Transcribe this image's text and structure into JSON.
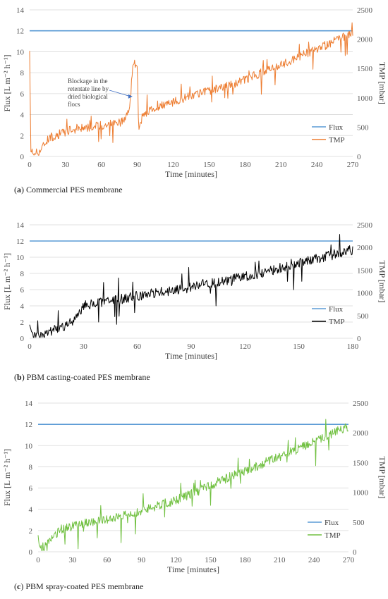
{
  "chart_data": [
    {
      "type": "line",
      "caption_letter": "a",
      "caption_text": "Commercial PES membrane",
      "xlabel": "Time [minutes]",
      "ylabel": "Flux [L m⁻² h⁻¹]",
      "y2label": "TMP [mbar]",
      "xlim": [
        0,
        270
      ],
      "ylim": [
        0,
        14
      ],
      "y2lim": [
        0,
        2500
      ],
      "xticks": [
        "0",
        "30",
        "60",
        "90",
        "120",
        "150",
        "180",
        "210",
        "240",
        "270"
      ],
      "yticks": [
        "0",
        "2",
        "4",
        "6",
        "8",
        "10",
        "12",
        "14"
      ],
      "y2ticks": [
        "0",
        "500",
        "1000",
        "1500",
        "2000",
        "2500"
      ],
      "grid": true,
      "legend_position": "bottom-right",
      "series": [
        {
          "name": "Flux",
          "axis": "left",
          "color": "#5b9bd5",
          "x": [
            0,
            270
          ],
          "y": [
            12,
            12
          ]
        },
        {
          "name": "TMP",
          "axis": "right",
          "color": "#ed7d31",
          "x": [
            0,
            1,
            3,
            5,
            8,
            12,
            15,
            20,
            30,
            40,
            50,
            60,
            70,
            80,
            84,
            86,
            88,
            90,
            91,
            95,
            100,
            110,
            120,
            130,
            140,
            150,
            160,
            170,
            180,
            190,
            200,
            210,
            220,
            230,
            240,
            250,
            260,
            270
          ],
          "y": [
            1800,
            80,
            60,
            70,
            80,
            200,
            300,
            350,
            420,
            480,
            500,
            530,
            560,
            600,
            900,
            1500,
            1580,
            1600,
            500,
            700,
            800,
            870,
            920,
            1000,
            1050,
            1120,
            1180,
            1230,
            1300,
            1400,
            1470,
            1560,
            1650,
            1750,
            1830,
            1920,
            2020,
            2100
          ],
          "noise": 75
        }
      ],
      "annotation": {
        "lines": [
          "Blockage in the",
          "retentate line by",
          "dried biological",
          "flocs"
        ],
        "target_x": 86,
        "target_y2": 1120
      }
    },
    {
      "type": "line",
      "caption_letter": "b",
      "caption_text": "PBM casting-coated PES membrane",
      "xlabel": "Time [minutes]",
      "ylabel": "Flux [L m⁻² h⁻¹]",
      "y2label": "TMP [mbar]",
      "xlim": [
        0,
        180
      ],
      "ylim": [
        0,
        14
      ],
      "y2lim": [
        0,
        2500
      ],
      "xticks": [
        "0",
        "30",
        "60",
        "90",
        "120",
        "150",
        "180"
      ],
      "yticks": [
        "0",
        "2",
        "4",
        "6",
        "8",
        "10",
        "12",
        "14"
      ],
      "y2ticks": [
        "0",
        "500",
        "1000",
        "1500",
        "2000",
        "2500"
      ],
      "grid": true,
      "legend_position": "bottom-right",
      "series": [
        {
          "name": "Flux",
          "axis": "left",
          "color": "#5b9bd5",
          "x": [
            0,
            180
          ],
          "y": [
            12,
            12
          ]
        },
        {
          "name": "TMP",
          "axis": "right",
          "color": "#000000",
          "x": [
            0,
            1,
            3,
            6,
            10,
            15,
            20,
            25,
            30,
            40,
            50,
            60,
            70,
            80,
            90,
            100,
            110,
            120,
            130,
            140,
            150,
            160,
            170,
            180
          ],
          "y": [
            300,
            150,
            60,
            80,
            150,
            200,
            280,
            380,
            720,
            800,
            860,
            930,
            1000,
            1050,
            1120,
            1200,
            1280,
            1350,
            1450,
            1550,
            1650,
            1750,
            1850,
            1950
          ],
          "noise": 110
        }
      ]
    },
    {
      "type": "line",
      "caption_letter": "c",
      "caption_text": "PBM spray-coated PES membrane",
      "xlabel": "Time [minutes]",
      "ylabel": "Flux [L m⁻² h⁻¹]",
      "y2label": "TMP [mbar]",
      "xlim": [
        0,
        270
      ],
      "ylim": [
        0,
        14
      ],
      "y2lim": [
        0,
        2500
      ],
      "xticks": [
        "0",
        "30",
        "60",
        "90",
        "120",
        "150",
        "180",
        "210",
        "240",
        "270"
      ],
      "yticks": [
        "0",
        "2",
        "4",
        "6",
        "8",
        "10",
        "12",
        "14"
      ],
      "y2ticks": [
        "0",
        "500",
        "1000",
        "1500",
        "2000",
        "2500"
      ],
      "grid": true,
      "legend_position": "bottom-right",
      "series": [
        {
          "name": "Flux",
          "axis": "left",
          "color": "#5b9bd5",
          "x": [
            0,
            270
          ],
          "y": [
            12,
            12
          ]
        },
        {
          "name": "TMP",
          "axis": "right",
          "color": "#70c040",
          "x": [
            0,
            1,
            3,
            6,
            10,
            15,
            20,
            30,
            40,
            50,
            60,
            70,
            80,
            90,
            100,
            110,
            120,
            130,
            140,
            150,
            160,
            170,
            180,
            190,
            200,
            210,
            220,
            230,
            240,
            250,
            260,
            270
          ],
          "y": [
            280,
            100,
            70,
            90,
            180,
            300,
            380,
            430,
            470,
            500,
            540,
            580,
            630,
            690,
            750,
            810,
            870,
            950,
            1030,
            1120,
            1200,
            1280,
            1360,
            1440,
            1520,
            1600,
            1680,
            1760,
            1850,
            1940,
            2020,
            2100
          ],
          "noise": 80
        }
      ]
    }
  ]
}
